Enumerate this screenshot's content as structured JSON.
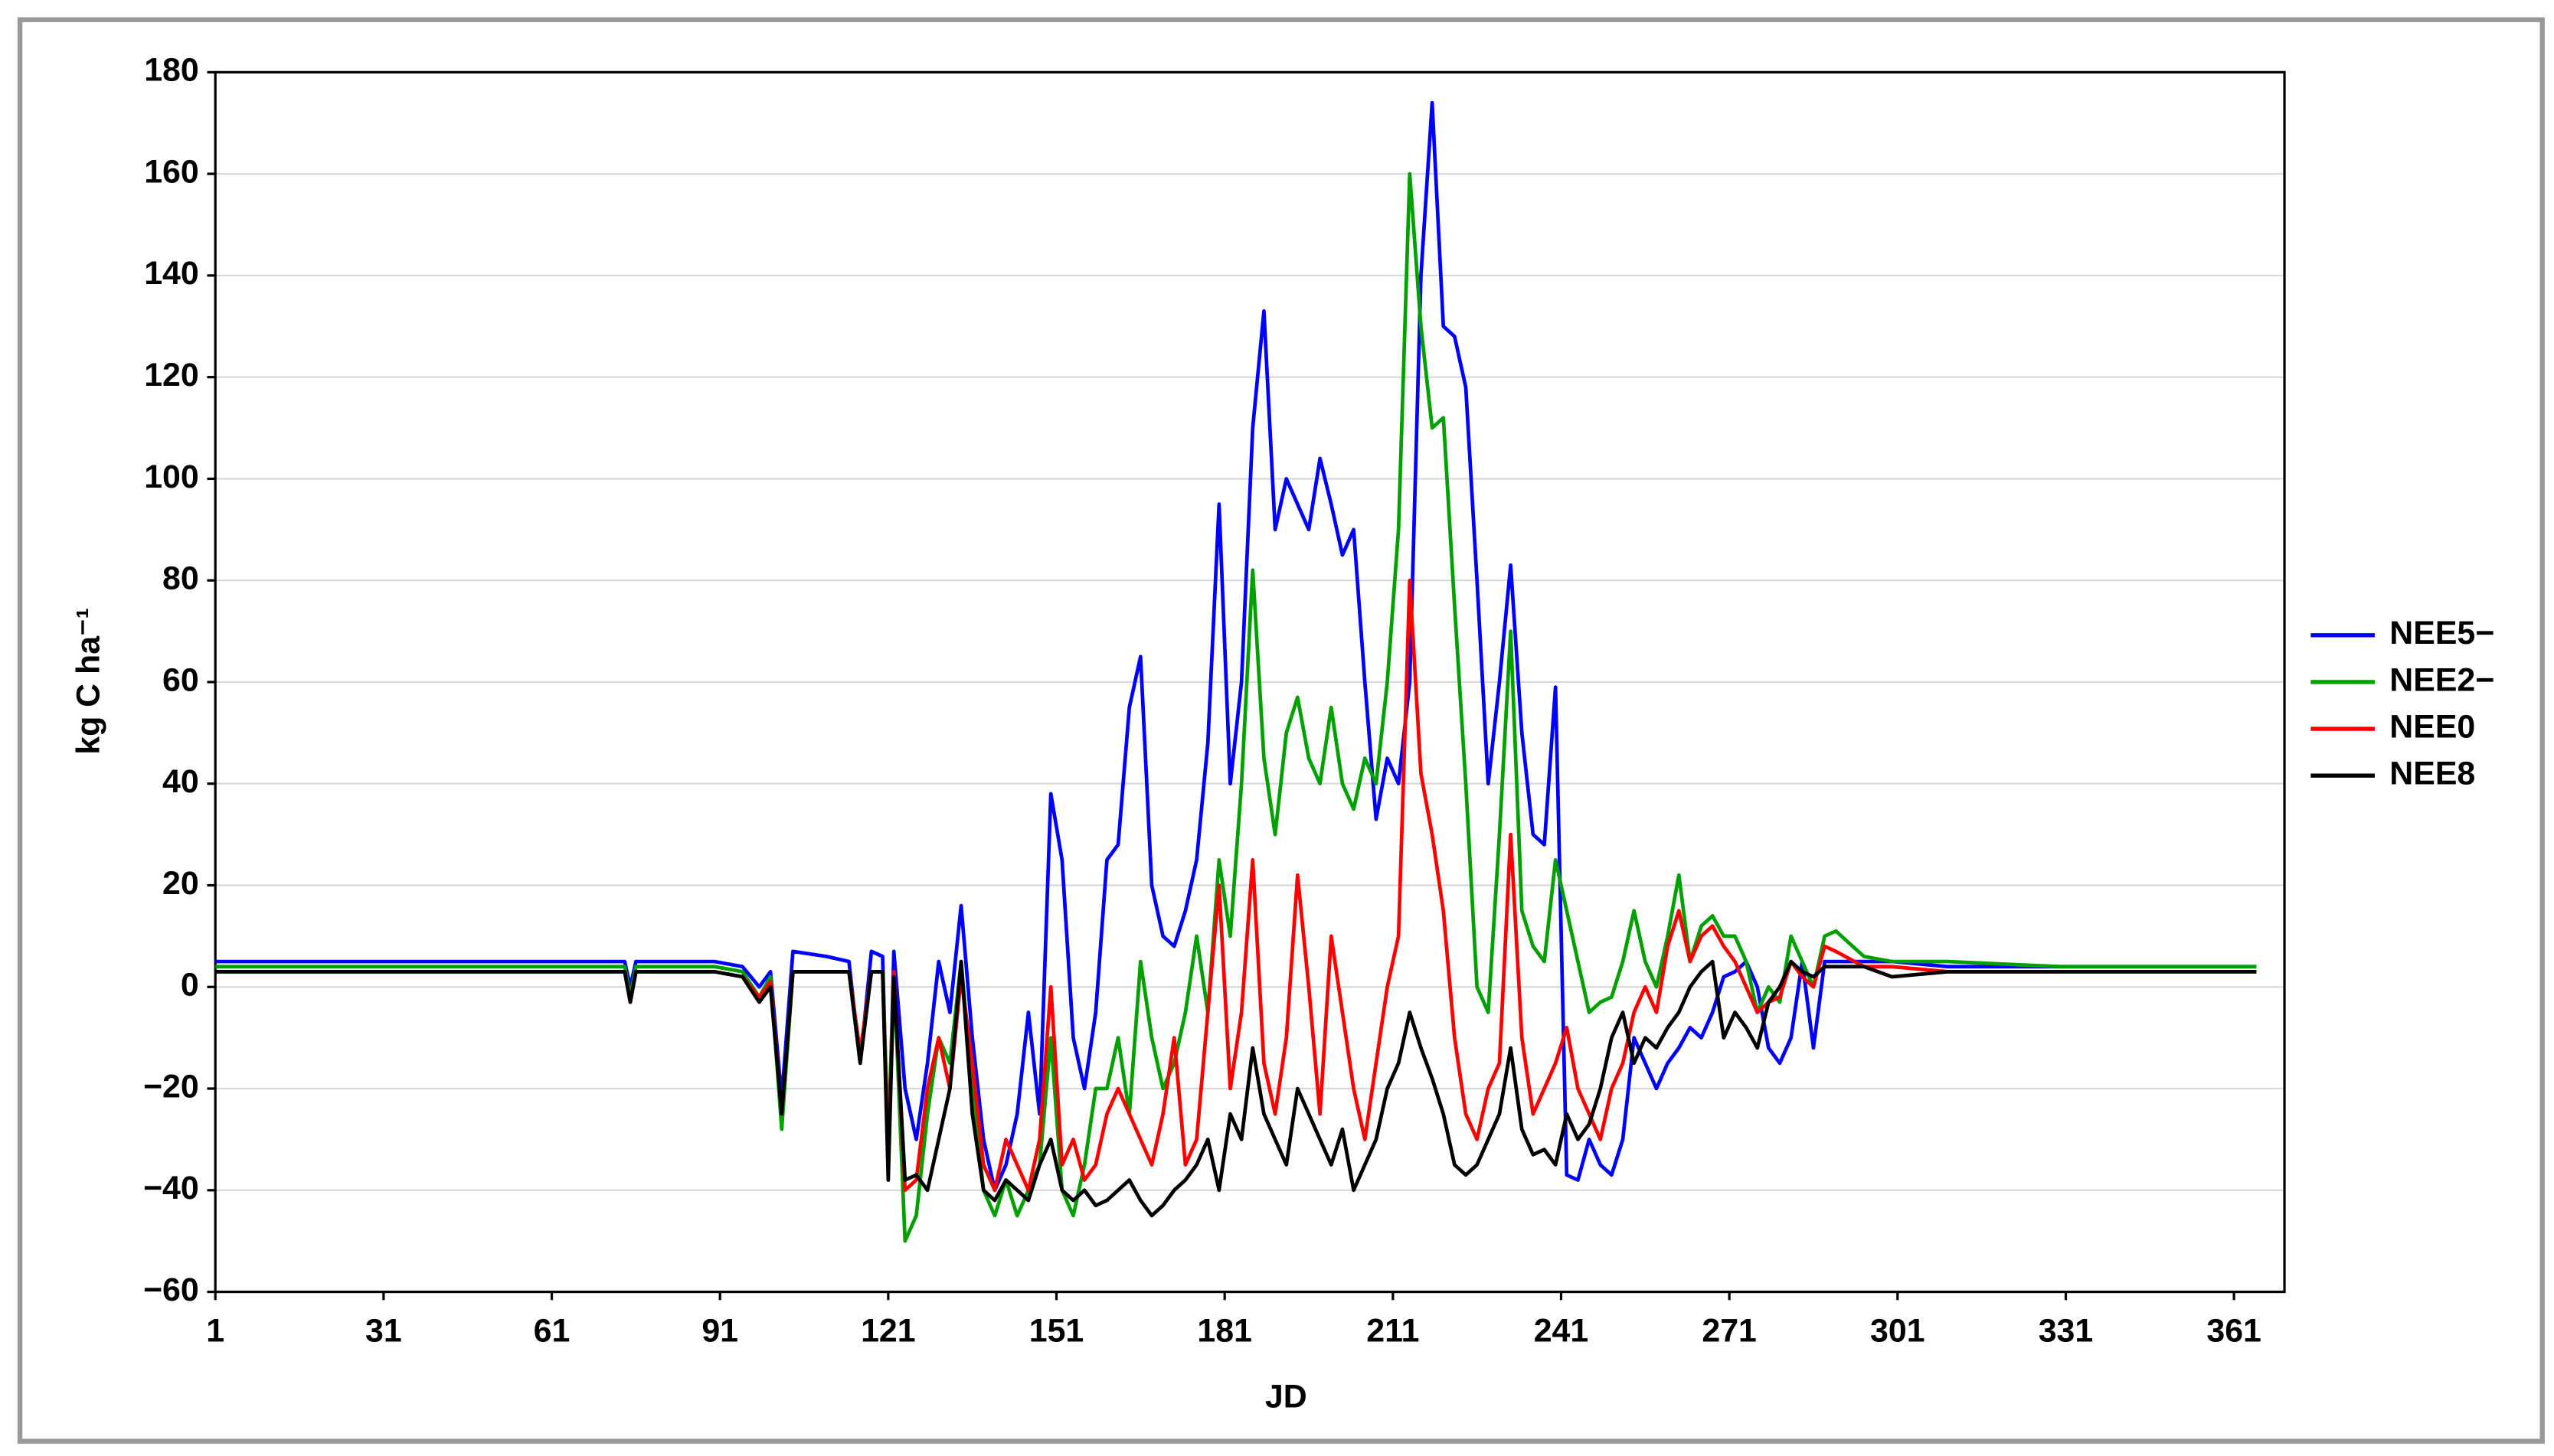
{
  "chart_data": {
    "type": "line",
    "xlabel": "JD",
    "ylabel": "kg C ha⁻¹",
    "x": [
      1,
      10,
      30,
      60,
      74,
      75,
      76,
      80,
      90,
      95,
      98,
      100,
      102,
      104,
      110,
      114,
      116,
      118,
      120,
      121,
      122,
      124,
      126,
      128,
      130,
      132,
      134,
      136,
      138,
      140,
      142,
      144,
      146,
      148,
      150,
      152,
      154,
      156,
      158,
      160,
      162,
      164,
      166,
      168,
      170,
      172,
      174,
      176,
      178,
      180,
      182,
      184,
      186,
      188,
      190,
      192,
      194,
      196,
      198,
      200,
      202,
      204,
      206,
      208,
      210,
      212,
      214,
      216,
      218,
      220,
      222,
      224,
      226,
      228,
      230,
      232,
      234,
      236,
      238,
      240,
      242,
      244,
      246,
      248,
      250,
      252,
      254,
      256,
      258,
      260,
      262,
      264,
      266,
      268,
      270,
      272,
      274,
      276,
      278,
      280,
      282,
      284,
      286,
      288,
      290,
      295,
      300,
      310,
      330,
      365
    ],
    "series": [
      {
        "name": "NEE5−",
        "color": "#0000ff",
        "values": [
          5,
          5,
          5,
          5,
          5,
          0,
          5,
          5,
          5,
          4,
          0,
          3,
          -22,
          7,
          6,
          5,
          -15,
          7,
          6,
          -35,
          7,
          -20,
          -30,
          -15,
          5,
          -5,
          16,
          -10,
          -30,
          -40,
          -35,
          -25,
          -5,
          -25,
          38,
          25,
          -10,
          -20,
          -5,
          25,
          28,
          55,
          65,
          20,
          10,
          8,
          15,
          25,
          48,
          95,
          40,
          60,
          110,
          133,
          90,
          100,
          95,
          90,
          104,
          95,
          85,
          90,
          60,
          33,
          45,
          40,
          60,
          140,
          174,
          130,
          128,
          118,
          80,
          40,
          60,
          83,
          50,
          30,
          28,
          59,
          -37,
          -38,
          -30,
          -35,
          -37,
          -30,
          -10,
          -15,
          -20,
          -15,
          -12,
          -8,
          -10,
          -5,
          2,
          3,
          5,
          0,
          -12,
          -15,
          -10,
          5,
          -12,
          5,
          5,
          5,
          5,
          4,
          4,
          4
        ]
      },
      {
        "name": "NEE2−",
        "color": "#00a000",
        "values": [
          4,
          4,
          4,
          4,
          4,
          -2,
          4,
          4,
          4,
          3,
          -2,
          2,
          -28,
          3,
          3,
          3,
          -13,
          3,
          3,
          -30,
          3,
          -50,
          -45,
          -25,
          -10,
          -15,
          5,
          -20,
          -40,
          -45,
          -38,
          -45,
          -40,
          -35,
          -10,
          -40,
          -45,
          -35,
          -20,
          -20,
          -10,
          -25,
          5,
          -10,
          -20,
          -15,
          -5,
          10,
          -5,
          25,
          10,
          40,
          82,
          45,
          30,
          50,
          57,
          45,
          40,
          55,
          40,
          35,
          45,
          40,
          60,
          90,
          160,
          130,
          110,
          112,
          75,
          40,
          0,
          -5,
          30,
          70,
          15,
          8,
          5,
          25,
          15,
          5,
          -5,
          -3,
          -2,
          5,
          15,
          5,
          0,
          10,
          22,
          5,
          12,
          14,
          10,
          10,
          5,
          -5,
          0,
          -3,
          10,
          5,
          0,
          10,
          11,
          6,
          5,
          5,
          4,
          4
        ]
      },
      {
        "name": "NEE0",
        "color": "#ff0000",
        "values": [
          3,
          3,
          3,
          3,
          3,
          -3,
          3,
          3,
          3,
          2,
          -2,
          1,
          -25,
          3,
          3,
          3,
          -13,
          3,
          3,
          -35,
          3,
          -40,
          -38,
          -20,
          -10,
          -20,
          2,
          -15,
          -35,
          -40,
          -30,
          -35,
          -40,
          -30,
          0,
          -35,
          -30,
          -38,
          -35,
          -25,
          -20,
          -25,
          -30,
          -35,
          -25,
          -10,
          -35,
          -30,
          -5,
          20,
          -20,
          -5,
          25,
          -15,
          -25,
          -10,
          22,
          0,
          -25,
          10,
          -5,
          -20,
          -30,
          -15,
          0,
          10,
          80,
          42,
          30,
          15,
          -10,
          -25,
          -30,
          -20,
          -15,
          30,
          -10,
          -25,
          -20,
          -15,
          -8,
          -20,
          -25,
          -30,
          -20,
          -15,
          -5,
          0,
          -5,
          8,
          15,
          5,
          10,
          12,
          8,
          5,
          0,
          -5,
          -3,
          -2,
          5,
          2,
          0,
          8,
          7,
          4,
          4,
          3,
          3,
          3
        ]
      },
      {
        "name": "NEE8",
        "color": "#000000",
        "values": [
          3,
          3,
          3,
          3,
          3,
          -3,
          3,
          3,
          3,
          2,
          -3,
          0,
          -25,
          3,
          3,
          3,
          -15,
          3,
          3,
          -38,
          2,
          -38,
          -37,
          -40,
          -30,
          -20,
          5,
          -25,
          -40,
          -42,
          -38,
          -40,
          -42,
          -35,
          -30,
          -40,
          -42,
          -40,
          -43,
          -42,
          -40,
          -38,
          -42,
          -45,
          -43,
          -40,
          -38,
          -35,
          -30,
          -40,
          -25,
          -30,
          -12,
          -25,
          -30,
          -35,
          -20,
          -25,
          -30,
          -35,
          -28,
          -40,
          -35,
          -30,
          -20,
          -15,
          -5,
          -12,
          -18,
          -25,
          -35,
          -37,
          -35,
          -30,
          -25,
          -12,
          -28,
          -33,
          -32,
          -35,
          -25,
          -30,
          -27,
          -20,
          -10,
          -5,
          -15,
          -10,
          -12,
          -8,
          -5,
          0,
          3,
          5,
          -10,
          -5,
          -8,
          -12,
          -3,
          0,
          5,
          3,
          2,
          4,
          4,
          4,
          2,
          3,
          3,
          3
        ]
      }
    ],
    "xlim": [
      1,
      370
    ],
    "xticks": [
      1,
      31,
      61,
      91,
      121,
      151,
      181,
      211,
      241,
      271,
      301,
      331,
      361
    ],
    "ylim": [
      -60,
      180
    ],
    "yticks": [
      {
        "value": -60,
        "label": "−60"
      },
      {
        "value": -40,
        "label": "−40"
      },
      {
        "value": -20,
        "label": "−20"
      },
      0,
      20,
      40,
      60,
      80,
      100,
      120,
      140,
      160,
      180
    ],
    "grid": true,
    "legend": "right"
  }
}
